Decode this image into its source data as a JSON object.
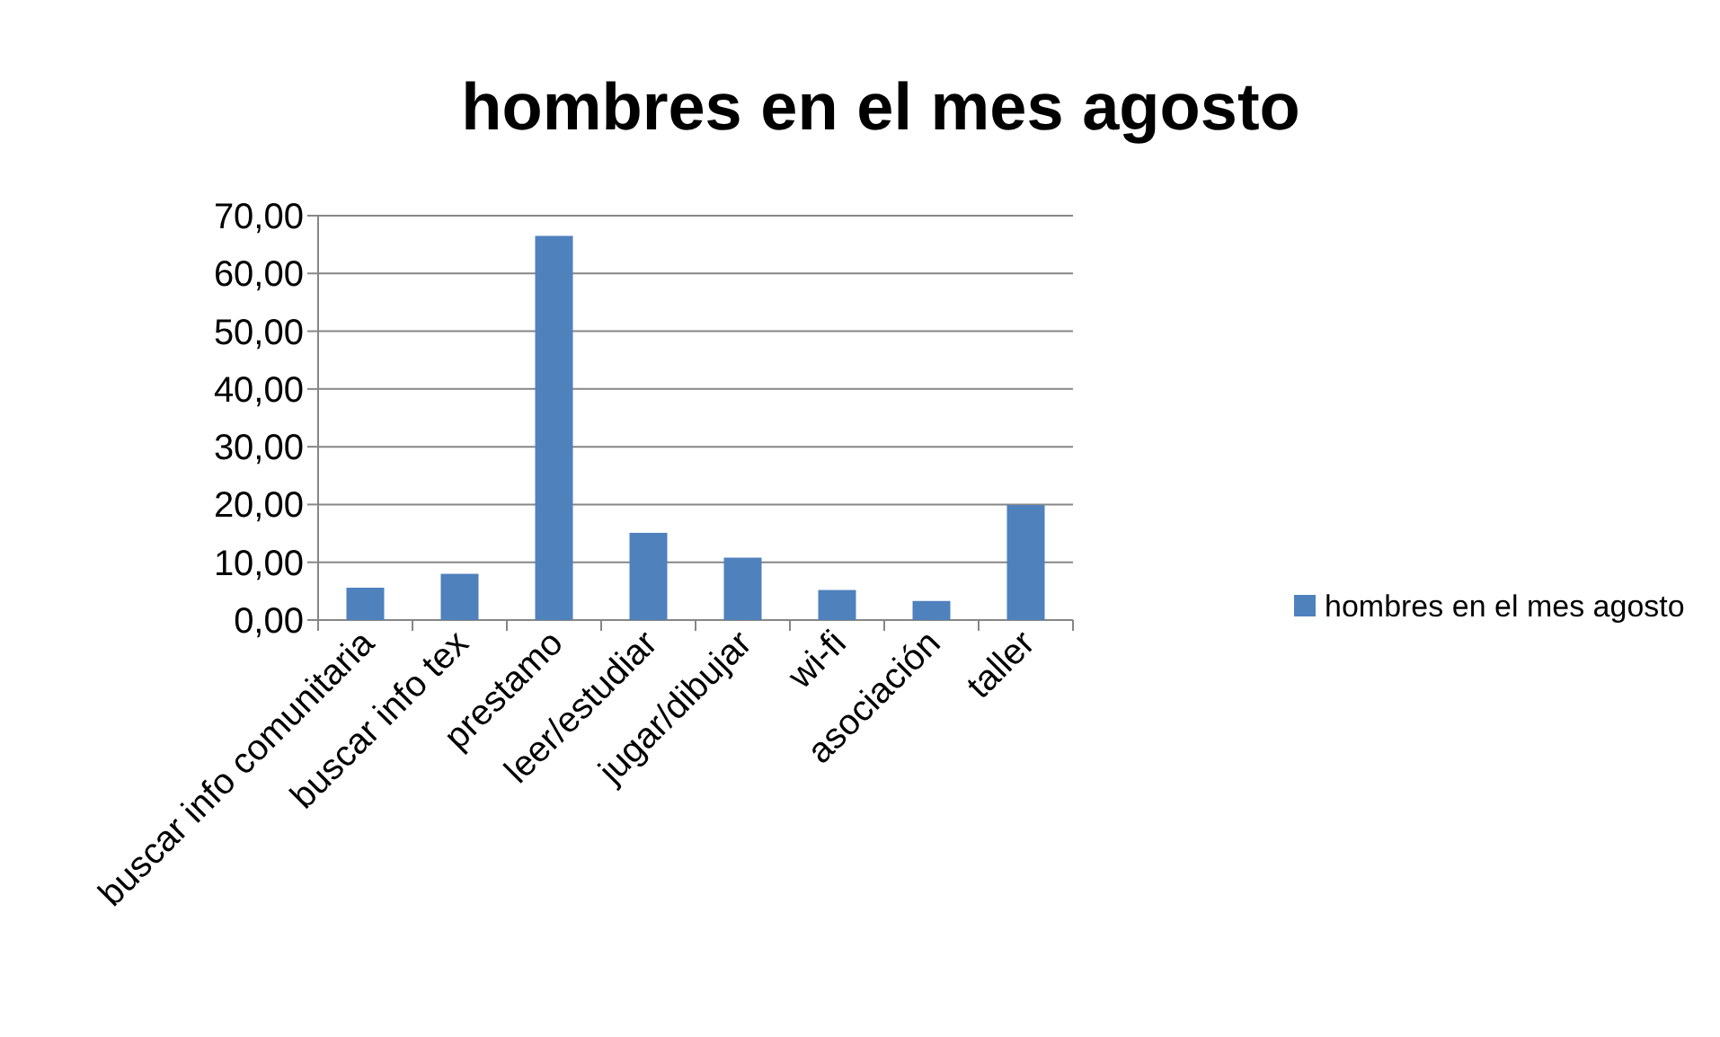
{
  "chart_data": {
    "type": "bar",
    "title": "hombres en el mes agosto",
    "categories": [
      "buscar info comunitaria",
      "buscar info tex",
      "prestamo",
      "leer/estudiar",
      "jugar/dibujar",
      "wi-fi",
      "asociación",
      "taller"
    ],
    "series": [
      {
        "name": "hombres en el mes agosto",
        "color": "#4f81bd",
        "values": [
          5.6,
          8.0,
          66.5,
          15.1,
          10.8,
          5.2,
          3.3,
          19.9
        ]
      }
    ],
    "ylim": [
      0,
      70
    ],
    "yticks": [
      {
        "value": 0,
        "label": "0,00"
      },
      {
        "value": 10,
        "label": "10,00"
      },
      {
        "value": 20,
        "label": "20,00"
      },
      {
        "value": 30,
        "label": "30,00"
      },
      {
        "value": 40,
        "label": "40,00"
      },
      {
        "value": 50,
        "label": "50,00"
      },
      {
        "value": 60,
        "label": "60,00"
      },
      {
        "value": 70,
        "label": "70,00"
      }
    ],
    "grid": "y",
    "legend": "right"
  }
}
